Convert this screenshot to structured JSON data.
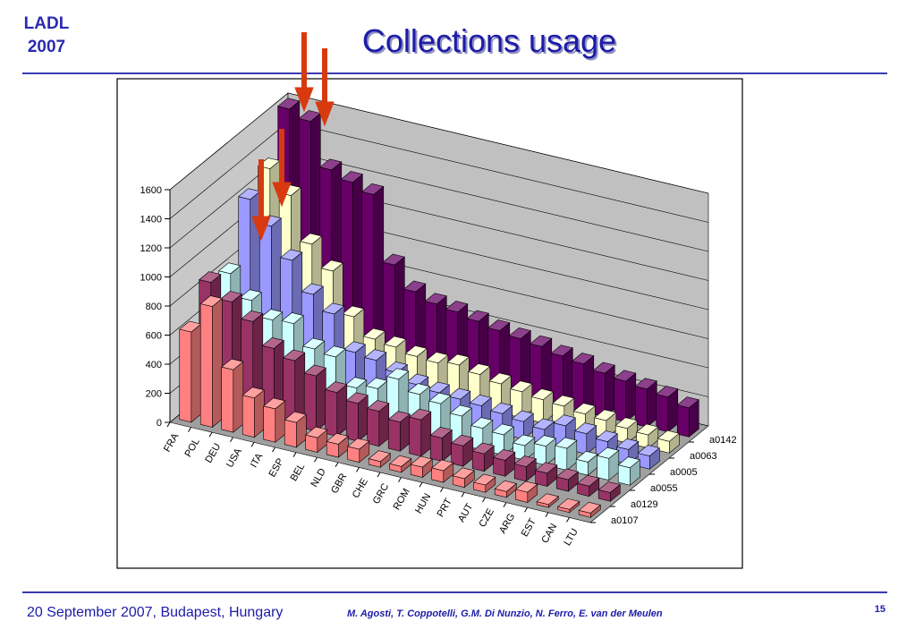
{
  "slide": {
    "logo_line1": "LADL",
    "logo_line2": "2007",
    "title": "Collections usage",
    "footer_left": "20 September 2007, Budapest, Hungary",
    "footer_authors": "M. Agosti, T. Coppotelli, G.M. Di Nunzio, N. Ferro, E. van der Meulen",
    "page_number": "15"
  },
  "chart_data": {
    "type": "bar3d",
    "categories": [
      "FRA",
      "POL",
      "DEU",
      "USA",
      "ITA",
      "ESP",
      "BEL",
      "NLD",
      "GBR",
      "CHE",
      "GRC",
      "ROM",
      "HUN",
      "PRT",
      "AUT",
      "CZE",
      "ARG",
      "EST",
      "CAN",
      "LTU"
    ],
    "series": [
      {
        "name": "a0107",
        "color": "#ff8080",
        "values": [
          620,
          830,
          430,
          270,
          230,
          170,
          100,
          90,
          90,
          40,
          40,
          70,
          80,
          60,
          50,
          40,
          70,
          20,
          20,
          30
        ]
      },
      {
        "name": "a0129",
        "color": "#993366",
        "values": [
          850,
          750,
          650,
          500,
          450,
          380,
          300,
          260,
          240,
          200,
          250,
          160,
          140,
          120,
          110,
          100,
          90,
          80,
          70,
          60
        ]
      },
      {
        "name": "a0055",
        "color": "#ccffff",
        "values": [
          800,
          650,
          550,
          560,
          420,
          400,
          220,
          250,
          350,
          280,
          250,
          200,
          150,
          140,
          100,
          130,
          150,
          90,
          150,
          120
        ]
      },
      {
        "name": "a0005",
        "color": "#9999ff",
        "values": [
          1200,
          1050,
          850,
          650,
          550,
          320,
          300,
          250,
          200,
          180,
          170,
          160,
          140,
          120,
          100,
          160,
          140,
          120,
          100,
          90
        ]
      },
      {
        "name": "a0063",
        "color": "#ffffcc",
        "values": [
          1300,
          1150,
          850,
          700,
          420,
          300,
          280,
          250,
          240,
          260,
          230,
          200,
          180,
          160,
          150,
          130,
          120,
          100,
          90,
          80
        ]
      },
      {
        "name": "a0142",
        "color": "#660066",
        "values": [
          1600,
          1550,
          1250,
          1200,
          1150,
          700,
          550,
          500,
          480,
          450,
          420,
          400,
          380,
          350,
          330,
          300,
          280,
          260,
          240,
          200
        ]
      }
    ],
    "ylim": [
      0,
      1600
    ],
    "yticks": [
      0,
      200,
      400,
      600,
      800,
      1000,
      1200,
      1400,
      1600
    ],
    "grid": true
  }
}
